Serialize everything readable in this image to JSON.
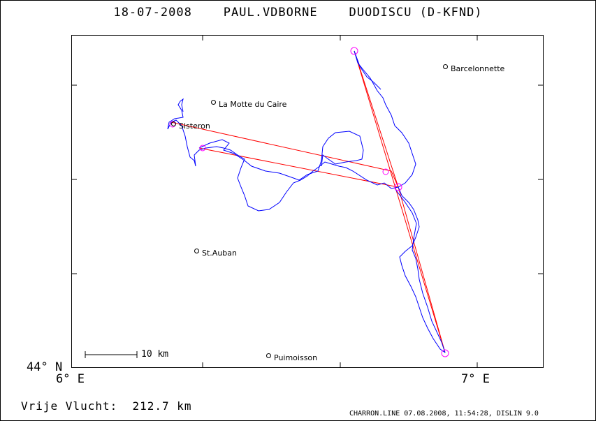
{
  "header": {
    "date": "18-07-2008",
    "pilot": "PAUL.VDBORNE",
    "glider": "DUODISCU (D-KFND)"
  },
  "axes": {
    "ylabel_bottom": "44° N",
    "xlabel_left": "6° E",
    "xlabel_right": "7° E"
  },
  "places": [
    {
      "name": "Barcelonnette"
    },
    {
      "name": "La Motte du Caire"
    },
    {
      "name": "Sisteron"
    },
    {
      "name": "St.Auban"
    },
    {
      "name": "Puimoisson"
    }
  ],
  "scale_bar": {
    "label": "10 km"
  },
  "footer": {
    "distance_label": "Vrije Vlucht:",
    "distance_value": "212.7 km",
    "info": "CHARRON.LINE 07.08.2008, 11:54:28, DISLIN 9.0"
  },
  "colors": {
    "track": "#0000ff",
    "task_legs": "#ff0000",
    "turnpoint_circles": "#ff00ff",
    "frame": "#000000"
  }
}
